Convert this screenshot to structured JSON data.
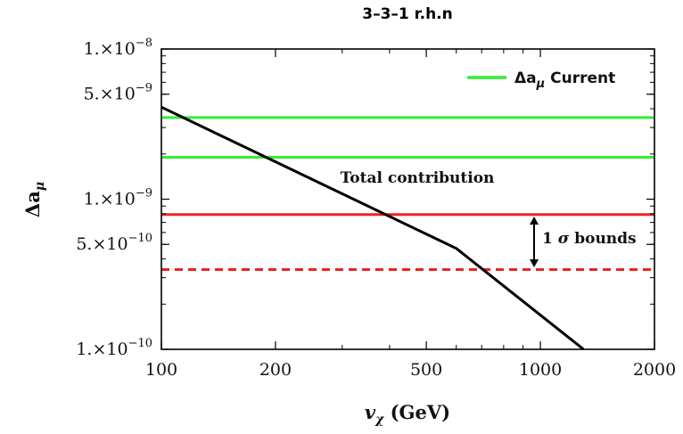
{
  "chart_data": {
    "type": "line",
    "title": "3–3–1 r.h.n",
    "xlabel_main": "v",
    "xlabel_sub": "χ",
    "xlabel_unit": " (GeV)",
    "ylabel_main": "Δa",
    "ylabel_sub": "μ",
    "x_scale": "log",
    "y_scale": "log",
    "xlim": [
      100,
      2000
    ],
    "ylim": [
      1e-10,
      1e-08
    ],
    "x_ticks": [
      {
        "value": 100,
        "label": "100"
      },
      {
        "value": 200,
        "label": "200"
      },
      {
        "value": 500,
        "label": "500"
      },
      {
        "value": 1000,
        "label": "1000"
      },
      {
        "value": 2000,
        "label": "2000"
      }
    ],
    "y_ticks": [
      {
        "value": 1e-08,
        "mant": "1.×10",
        "exp": "−8"
      },
      {
        "value": 5e-09,
        "mant": "5.×10",
        "exp": "−9"
      },
      {
        "value": 1e-09,
        "mant": "1.×10",
        "exp": "−9"
      },
      {
        "value": 5e-10,
        "mant": "5.×10",
        "exp": "−10"
      },
      {
        "value": 1e-10,
        "mant": "1.×10",
        "exp": "−10"
      }
    ],
    "curve": {
      "label": "Total contribution",
      "color": "#000000",
      "x": [
        100,
        600,
        1300
      ],
      "y": [
        4.1e-09,
        4.7e-10,
        1e-10
      ]
    },
    "hlines": [
      {
        "value": 3.5e-09,
        "color": "#33ee33",
        "style": "solid"
      },
      {
        "value": 1.9e-09,
        "color": "#33ee33",
        "style": "solid"
      },
      {
        "value": 7.9e-10,
        "color": "#ee2222",
        "style": "solid"
      },
      {
        "value": 3.4e-10,
        "color": "#ee2222",
        "style": "dashed"
      }
    ],
    "legend": {
      "main": "Δa",
      "sub": "μ",
      "rest": " Current",
      "color": "#33ee33",
      "position": "top-right"
    },
    "annotation": {
      "prefix": "1 ",
      "symbol": "σ",
      "rest": " bounds"
    }
  }
}
